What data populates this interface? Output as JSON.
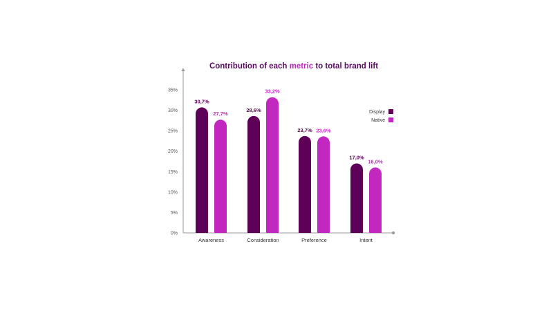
{
  "colors": {
    "display": "#5e0058",
    "native": "#c228c0",
    "title": "#5a0a62",
    "title_highlight": "#c228c0",
    "axis": "#999999"
  },
  "chart_data": {
    "type": "bar",
    "title": {
      "prefix": "Contribution of each ",
      "highlight": "metric",
      "suffix": " to total brand lift"
    },
    "categories": [
      "Awareness",
      "Consideration",
      "Preference",
      "Intent"
    ],
    "series": [
      {
        "name": "Display",
        "values": [
          30.7,
          28.6,
          23.7,
          17.0
        ],
        "labels": [
          "30,7%",
          "28,6%",
          "23,7%",
          "17,0%"
        ]
      },
      {
        "name": "Native",
        "values": [
          27.7,
          33.2,
          23.6,
          16.0
        ],
        "labels": [
          "27,7%",
          "33,2%",
          "23,6%",
          "16,0%"
        ]
      }
    ],
    "ylim": [
      0,
      35
    ],
    "y_ticks": [
      0,
      5,
      10,
      15,
      20,
      25,
      30,
      35
    ],
    "y_tick_labels": [
      "0%",
      "5%",
      "10%",
      "15%",
      "20%",
      "25%",
      "30%",
      "35%"
    ],
    "grid": false,
    "legend_position": "top-right"
  }
}
